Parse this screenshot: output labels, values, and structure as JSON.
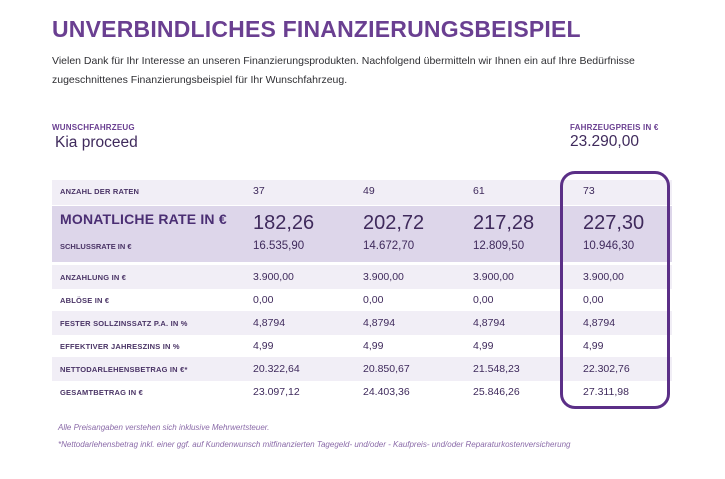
{
  "title": "UNVERBINDLICHES FINANZIERUNGSBEISPIEL",
  "intro": "Vielen Dank für Ihr Interesse an unseren Finanzierungsprodukten. Nachfolgend übermitteln wir Ihnen ein auf Ihre Bedürfnisse zugeschnittenes Finanzierungsbeispiel für Ihr Wunschfahrzeug.",
  "vehicle": {
    "label": "WUNSCHFAHRZEUG",
    "value": "Kia proceed"
  },
  "price": {
    "label": "FAHRZEUGPREIS IN €",
    "value": "23.290,00"
  },
  "colors": {
    "accent": "#6a3f91",
    "highlight_border": "#5b2f87",
    "band_dark": "#ddd6ea",
    "band_light": "#f1eef6"
  },
  "table": {
    "rows": [
      {
        "label": "ANZAHL DER RATEN",
        "values": [
          "37",
          "49",
          "61",
          "73"
        ]
      },
      {
        "label": "MONATLICHE RATE IN €",
        "values": [
          "182,26",
          "202,72",
          "217,28",
          "227,30"
        ]
      },
      {
        "label": "SCHLUSSRATE IN €",
        "values": [
          "16.535,90",
          "14.672,70",
          "12.809,50",
          "10.946,30"
        ]
      },
      {
        "label": "ANZAHLUNG IN €",
        "values": [
          "3.900,00",
          "3.900,00",
          "3.900,00",
          "3.900,00"
        ]
      },
      {
        "label": "ABLÖSE IN €",
        "values": [
          "0,00",
          "0,00",
          "0,00",
          "0,00"
        ]
      },
      {
        "label": "FESTER SOLLZINSSATZ P.A. IN %",
        "values": [
          "4,8794",
          "4,8794",
          "4,8794",
          "4,8794"
        ]
      },
      {
        "label": "EFFEKTIVER JAHRESZINS IN %",
        "values": [
          "4,99",
          "4,99",
          "4,99",
          "4,99"
        ]
      },
      {
        "label": "NETTODARLEHENSBETRAG IN €*",
        "values": [
          "20.322,64",
          "20.850,67",
          "21.548,23",
          "22.302,76"
        ]
      },
      {
        "label": "GESAMTBETRAG IN €",
        "values": [
          "23.097,12",
          "24.403,36",
          "25.846,26",
          "27.311,98"
        ]
      }
    ]
  },
  "footnotes": {
    "vat": "Alle Preisangaben verstehen sich inklusive Mehrwertsteuer.",
    "net_loan": "*Nettodarlehensbetrag inkl. einer ggf. auf Kundenwunsch mitfinanzierten Tagegeld- und/oder - Kaufpreis- und/oder Reparaturkostenversicherung"
  }
}
